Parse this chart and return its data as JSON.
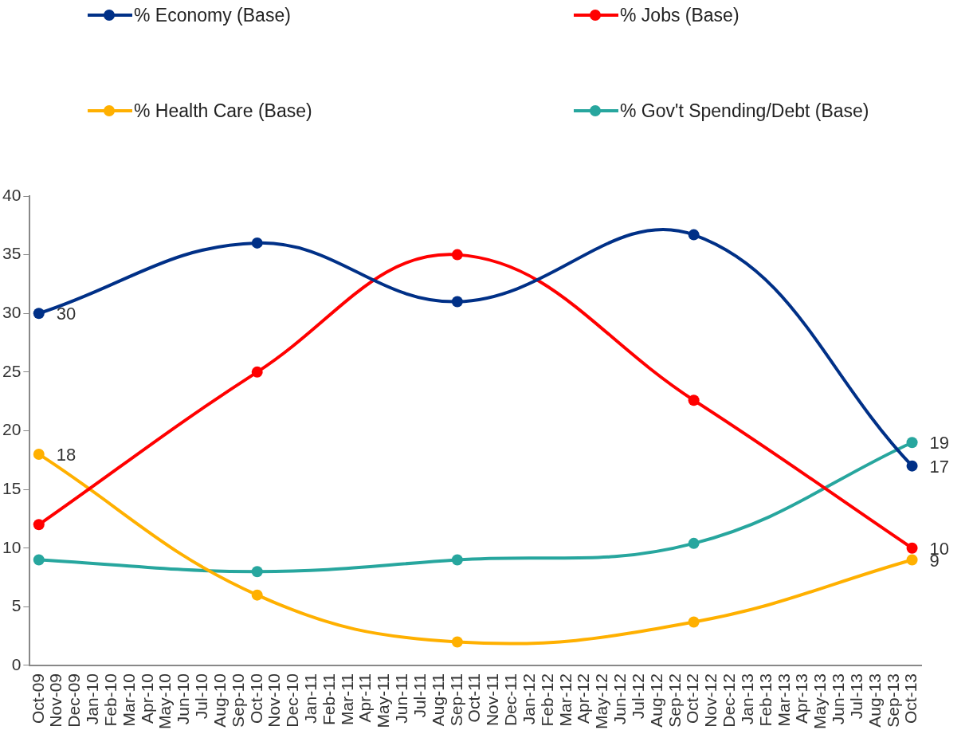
{
  "chart_data": {
    "type": "line",
    "categories": [
      "Oct-09",
      "Nov-09",
      "Dec-09",
      "Jan-10",
      "Feb-10",
      "Mar-10",
      "Apr-10",
      "May-10",
      "Jun-10",
      "Jul-10",
      "Aug-10",
      "Sep-10",
      "Oct-10",
      "Nov-10",
      "Dec-10",
      "Jan-11",
      "Feb-11",
      "Mar-11",
      "Apr-11",
      "May-11",
      "Jun-11",
      "Jul-11",
      "Aug-11",
      "Sep-11",
      "Oct-11",
      "Nov-11",
      "Dec-11",
      "Jan-12",
      "Feb-12",
      "Mar-12",
      "Apr-12",
      "May-12",
      "Jun-12",
      "Jul-12",
      "Aug-12",
      "Sep-12",
      "Oct-12",
      "Nov-12",
      "Dec-12",
      "Jan-13",
      "Feb-13",
      "Mar-13",
      "Apr-13",
      "May-13",
      "Jun-13",
      "Jul-13",
      "Aug-13",
      "Sep-13",
      "Oct-13"
    ],
    "series": [
      {
        "name": "% Economy (Base)",
        "color": "#003087",
        "values": [
          30,
          null,
          null,
          null,
          null,
          null,
          null,
          null,
          null,
          null,
          null,
          null,
          36,
          null,
          null,
          null,
          null,
          null,
          null,
          null,
          null,
          null,
          null,
          31,
          null,
          null,
          null,
          null,
          null,
          null,
          null,
          null,
          null,
          null,
          null,
          null,
          36.7,
          null,
          null,
          null,
          null,
          null,
          null,
          null,
          null,
          null,
          null,
          null,
          17
        ],
        "value_labels": [
          "30",
          null,
          null,
          null,
          null,
          null,
          null,
          null,
          null,
          null,
          null,
          null,
          null,
          null,
          null,
          null,
          null,
          null,
          null,
          null,
          null,
          null,
          null,
          null,
          null,
          null,
          null,
          null,
          null,
          null,
          null,
          null,
          null,
          null,
          null,
          null,
          null,
          null,
          null,
          null,
          null,
          null,
          null,
          null,
          null,
          null,
          null,
          null,
          "17"
        ]
      },
      {
        "name": "% Jobs (Base)",
        "color": "#ff0000",
        "values": [
          12,
          null,
          null,
          null,
          null,
          null,
          null,
          null,
          null,
          null,
          null,
          null,
          25,
          null,
          null,
          null,
          null,
          null,
          null,
          null,
          null,
          null,
          null,
          35,
          null,
          null,
          null,
          null,
          null,
          null,
          null,
          null,
          null,
          null,
          null,
          null,
          22.6,
          null,
          null,
          null,
          null,
          null,
          null,
          null,
          null,
          null,
          null,
          null,
          10
        ],
        "value_labels": [
          null,
          null,
          null,
          null,
          null,
          null,
          null,
          null,
          null,
          null,
          null,
          null,
          null,
          null,
          null,
          null,
          null,
          null,
          null,
          null,
          null,
          null,
          null,
          null,
          null,
          null,
          null,
          null,
          null,
          null,
          null,
          null,
          null,
          null,
          null,
          null,
          null,
          null,
          null,
          null,
          null,
          null,
          null,
          null,
          null,
          null,
          null,
          null,
          "10"
        ]
      },
      {
        "name": "% Health Care (Base)",
        "color": "#ffb000",
        "values": [
          18,
          null,
          null,
          null,
          null,
          null,
          null,
          null,
          null,
          null,
          null,
          null,
          6,
          null,
          null,
          null,
          null,
          null,
          null,
          null,
          null,
          null,
          null,
          2,
          null,
          null,
          null,
          null,
          null,
          null,
          null,
          null,
          null,
          null,
          null,
          null,
          3.7,
          null,
          null,
          null,
          null,
          null,
          null,
          null,
          null,
          null,
          null,
          null,
          9
        ],
        "value_labels": [
          "18",
          null,
          null,
          null,
          null,
          null,
          null,
          null,
          null,
          null,
          null,
          null,
          null,
          null,
          null,
          null,
          null,
          null,
          null,
          null,
          null,
          null,
          null,
          null,
          null,
          null,
          null,
          null,
          null,
          null,
          null,
          null,
          null,
          null,
          null,
          null,
          null,
          null,
          null,
          null,
          null,
          null,
          null,
          null,
          null,
          null,
          null,
          null,
          "9"
        ]
      },
      {
        "name": "% Gov't Spending/Debt (Base)",
        "color": "#27a69e",
        "values": [
          9,
          null,
          null,
          null,
          null,
          null,
          null,
          null,
          null,
          null,
          null,
          null,
          8,
          null,
          null,
          null,
          null,
          null,
          null,
          null,
          null,
          null,
          null,
          9,
          null,
          null,
          null,
          null,
          null,
          null,
          null,
          null,
          null,
          null,
          null,
          null,
          10.4,
          null,
          null,
          null,
          null,
          null,
          null,
          null,
          null,
          null,
          null,
          null,
          19
        ],
        "value_labels": [
          null,
          null,
          null,
          null,
          null,
          null,
          null,
          null,
          null,
          null,
          null,
          null,
          null,
          null,
          null,
          null,
          null,
          null,
          null,
          null,
          null,
          null,
          null,
          null,
          null,
          null,
          null,
          null,
          null,
          null,
          null,
          null,
          null,
          null,
          null,
          null,
          null,
          null,
          null,
          null,
          null,
          null,
          null,
          null,
          null,
          null,
          null,
          null,
          "19"
        ]
      }
    ],
    "ylim": [
      0,
      40
    ],
    "yticks": [
      0,
      5,
      10,
      15,
      20,
      25,
      30,
      35,
      40
    ],
    "grid": false,
    "legend": "top",
    "marker": "circle",
    "line_style": "solid"
  }
}
